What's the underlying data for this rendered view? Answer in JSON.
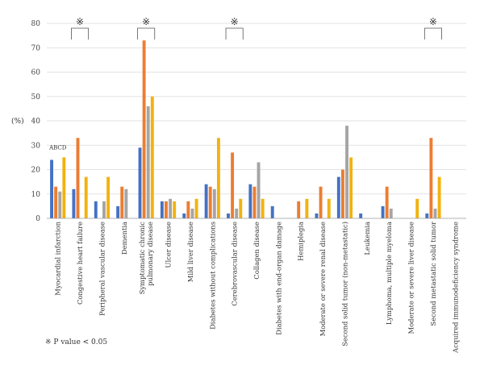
{
  "chart_data": {
    "type": "bar",
    "ylabel": "(%)",
    "ylim": [
      0,
      80
    ],
    "yticks": [
      0,
      10,
      20,
      30,
      40,
      50,
      60,
      70,
      80
    ],
    "grid": true,
    "series_label_text": "ABCD",
    "categories": [
      "Myocardial infarction",
      "Congestive heart failure",
      "Peripheral vascular disease",
      "Dementia",
      "Symptomatic chronic pulmonary disease",
      "Ulcer disease",
      "Mild liver disease",
      "Diabetes without complications",
      "Cerebrovascular disease",
      "Collagen disease",
      "Diabetes with end-organ damage",
      "Hemiplegia",
      "Moderate or severe renal disease",
      "Second solid tumor (non-metastatic)",
      "Leukemia",
      "Lymphoma, multiple myeloma",
      "Moderate or severe liver disease",
      "Second metastatic solid tumor",
      "Acquired immunodeficiency syndrome"
    ],
    "series": [
      {
        "name": "A",
        "color": "#4472C4",
        "values": [
          24,
          12,
          7,
          5,
          29,
          7,
          2,
          14,
          2,
          14,
          5,
          0,
          2,
          17,
          2,
          5,
          0,
          2,
          0
        ]
      },
      {
        "name": "B",
        "color": "#ED7D31",
        "values": [
          13,
          33,
          0,
          13,
          73,
          7,
          7,
          13,
          27,
          13,
          0,
          7,
          13,
          20,
          0,
          13,
          0,
          33,
          0
        ]
      },
      {
        "name": "C",
        "color": "#A5A5A5",
        "values": [
          11,
          0,
          7,
          12,
          46,
          8,
          4,
          12,
          4,
          23,
          0,
          0,
          0,
          38,
          0,
          4,
          0,
          4,
          0
        ]
      },
      {
        "name": "D",
        "color": "#F2B20F",
        "values": [
          25,
          17,
          17,
          0,
          50,
          7,
          8,
          33,
          8,
          8,
          0,
          8,
          8,
          25,
          0,
          0,
          8,
          17,
          0
        ]
      }
    ],
    "significance": {
      "symbol": "※",
      "categories": [
        1,
        4,
        8,
        17
      ]
    },
    "footnote": "※  P value < 0.05"
  }
}
